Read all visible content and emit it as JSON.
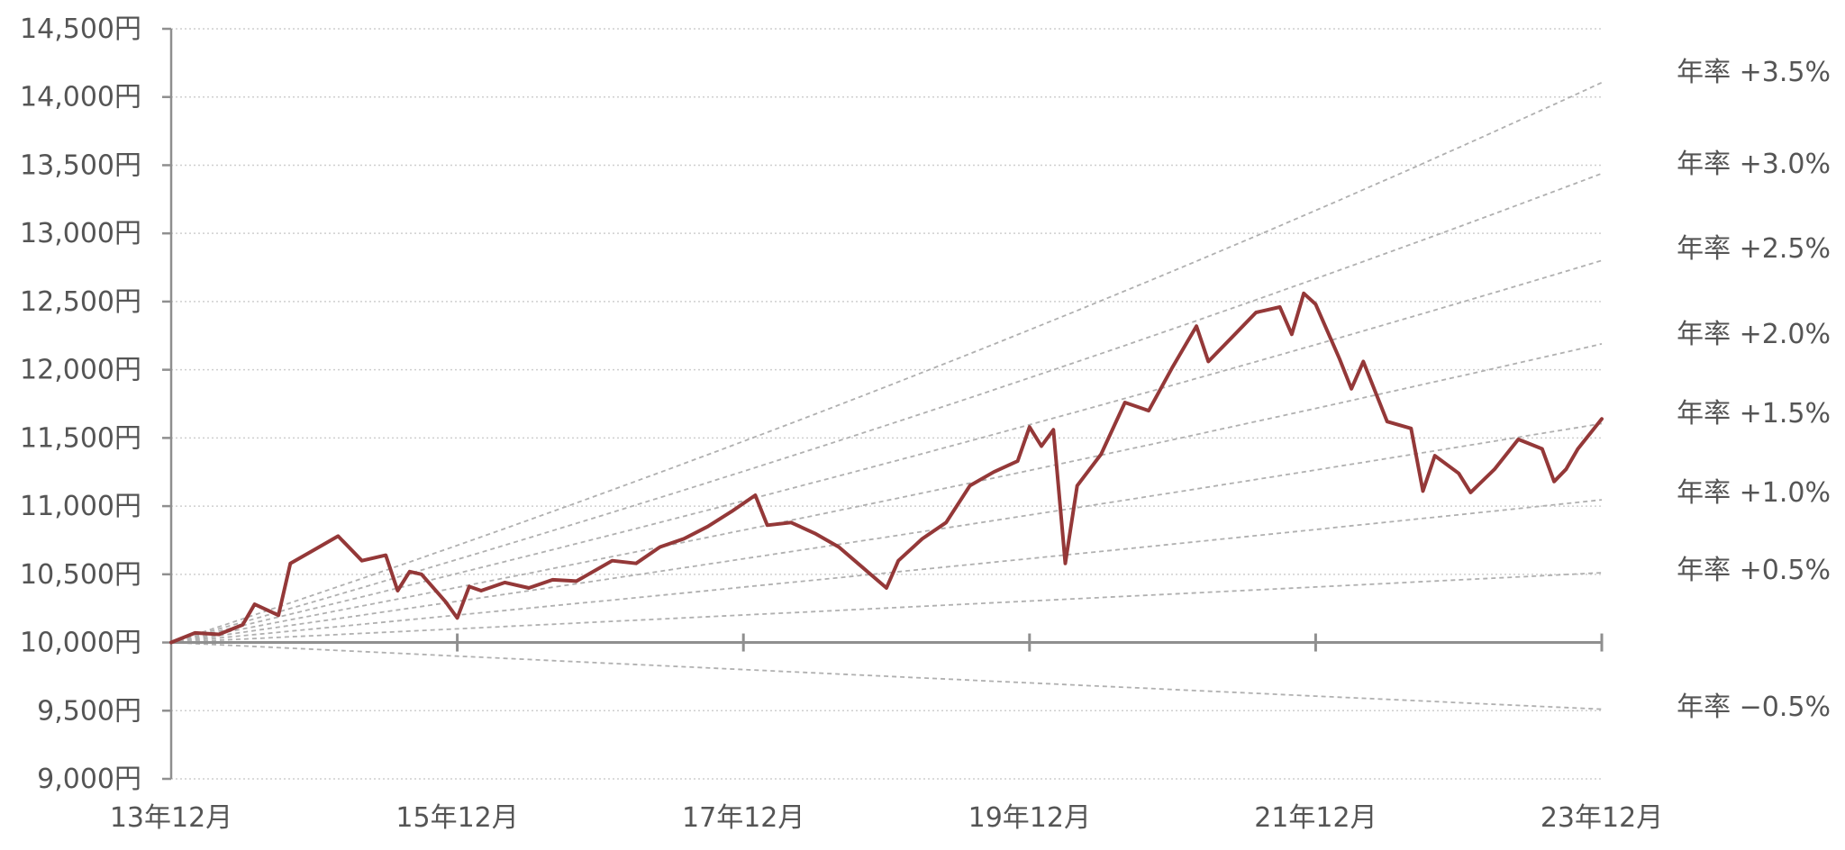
{
  "chart_data": {
    "type": "line",
    "title": "",
    "xlabel": "",
    "ylabel": "",
    "xlim": [
      "2013-12",
      "2023-12"
    ],
    "ylim": [
      9000,
      14500
    ],
    "grid": true,
    "y_ticks": [
      9000,
      9500,
      10000,
      10500,
      11000,
      11500,
      12000,
      12500,
      13000,
      13500,
      14000,
      14500
    ],
    "y_tick_labels": [
      "9,000円",
      "9,500円",
      "10,000円",
      "10,500円",
      "11,000円",
      "11,500円",
      "12,000円",
      "12,500円",
      "13,000円",
      "13,500円",
      "14,000円",
      "14,500円"
    ],
    "x_ticks": [
      "2013-12",
      "2015-12",
      "2017-12",
      "2019-12",
      "2021-12",
      "2023-12"
    ],
    "x_tick_labels": [
      "13年12月",
      "15年12月",
      "17年12月",
      "19年12月",
      "21年12月",
      "23年12月"
    ],
    "series": [
      {
        "color": "#943838",
        "x": [
          "2013-12",
          "2014-02",
          "2014-04",
          "2014-06",
          "2014-07",
          "2014-09",
          "2014-10",
          "2014-12",
          "2015-02",
          "2015-04",
          "2015-06",
          "2015-07",
          "2015-08",
          "2015-09",
          "2015-11",
          "2015-12",
          "2016-01",
          "2016-02",
          "2016-04",
          "2016-06",
          "2016-08",
          "2016-10",
          "2016-11",
          "2017-01",
          "2017-03",
          "2017-05",
          "2017-07",
          "2017-09",
          "2017-11",
          "2018-01",
          "2018-02",
          "2018-04",
          "2018-06",
          "2018-08",
          "2018-10",
          "2018-12",
          "2019-01",
          "2019-03",
          "2019-05",
          "2019-07",
          "2019-09",
          "2019-11",
          "2019-12",
          "2020-01",
          "2020-02",
          "2020-03",
          "2020-04",
          "2020-06",
          "2020-08",
          "2020-10",
          "2020-12",
          "2021-02",
          "2021-03",
          "2021-05",
          "2021-07",
          "2021-09",
          "2021-10",
          "2021-11",
          "2021-12",
          "2022-02",
          "2022-03",
          "2022-04",
          "2022-06",
          "2022-08",
          "2022-09",
          "2022-10",
          "2022-12",
          "2023-01",
          "2023-03",
          "2023-05",
          "2023-07",
          "2023-08",
          "2023-09",
          "2023-10",
          "2023-12"
        ],
        "values": [
          10000,
          10070,
          10060,
          10130,
          10280,
          10200,
          10580,
          10680,
          10780,
          10600,
          10640,
          10380,
          10520,
          10500,
          10300,
          10180,
          10410,
          10380,
          10440,
          10400,
          10460,
          10450,
          10500,
          10600,
          10580,
          10700,
          10760,
          10850,
          10960,
          11080,
          10860,
          10880,
          10800,
          10700,
          10550,
          10400,
          10600,
          10760,
          10880,
          11150,
          11250,
          11330,
          11580,
          11440,
          11560,
          10580,
          11150,
          11380,
          11760,
          11700,
          12020,
          12320,
          12060,
          12240,
          12420,
          12460,
          12260,
          12560,
          12480,
          12080,
          11860,
          12060,
          11620,
          11570,
          11110,
          11370,
          11240,
          11100,
          11270,
          11490,
          11420,
          11180,
          11270,
          11420,
          11640
        ]
      }
    ],
    "reference_lines": [
      {
        "label": "年率 +3.5%",
        "rate": 3.5
      },
      {
        "label": "年率 +3.0%",
        "rate": 3.0
      },
      {
        "label": "年率 +2.5%",
        "rate": 2.5
      },
      {
        "label": "年率 +2.0%",
        "rate": 2.0
      },
      {
        "label": "年率 +1.5%",
        "rate": 1.5
      },
      {
        "label": "年率 +1.0%",
        "rate": 1.0
      },
      {
        "label": "年率 +0.5%",
        "rate": 0.5
      },
      {
        "label": "年率 −0.5%",
        "rate": -0.5
      }
    ],
    "colors": {
      "line": "#943838",
      "reference": "#b0b0b0",
      "grid": "#cfcfcf",
      "axis": "#8f8f8f",
      "text": "#555555"
    }
  }
}
